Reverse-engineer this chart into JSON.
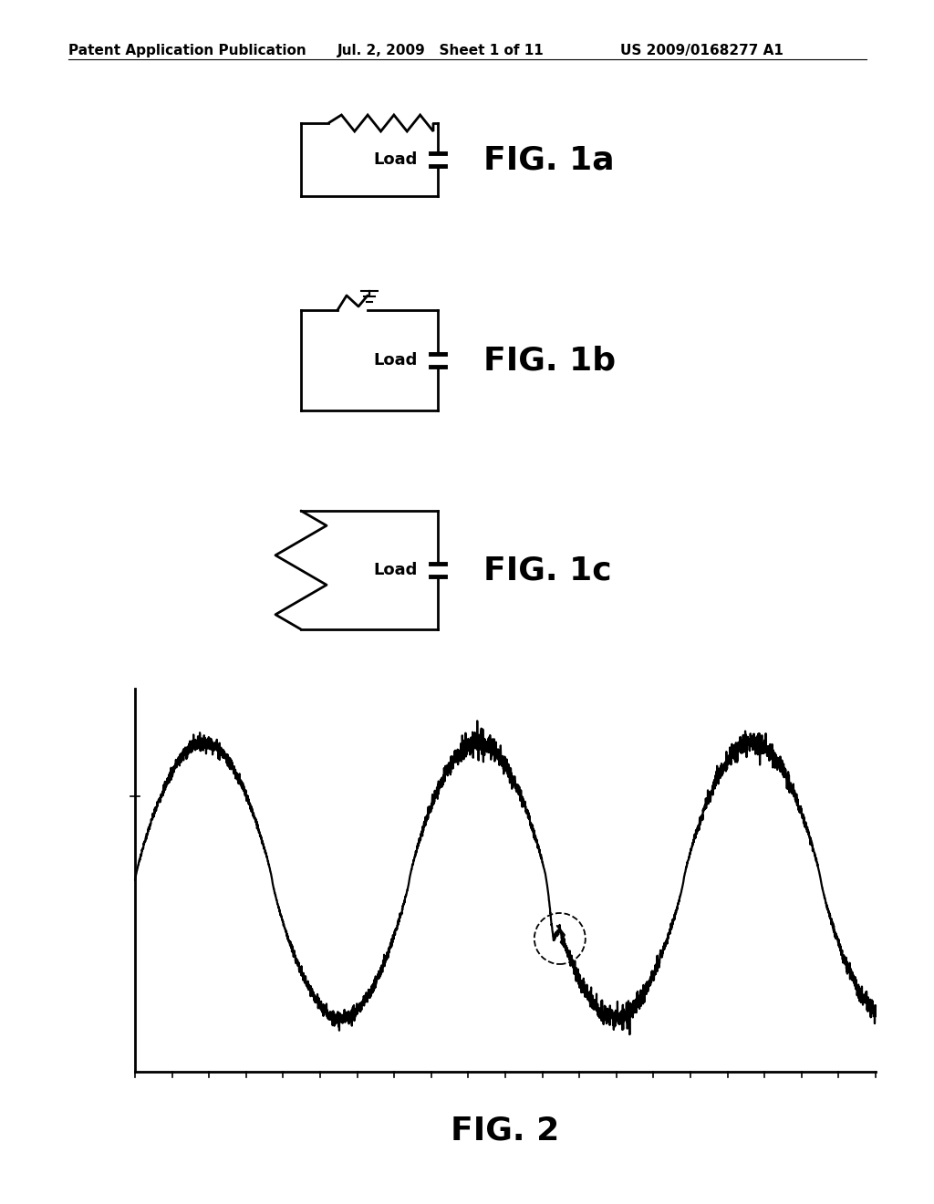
{
  "title_left": "Patent Application Publication",
  "title_center": "Jul. 2, 2009   Sheet 1 of 11",
  "title_right": "US 2009/0168277 A1",
  "fig1a_label": "FIG. 1a",
  "fig1b_label": "FIG. 1b",
  "fig1c_label": "FIG. 1c",
  "fig2_label": "FIG. 2",
  "load_label": "Load",
  "background_color": "#ffffff",
  "line_color": "#000000",
  "line_width": 2.0
}
